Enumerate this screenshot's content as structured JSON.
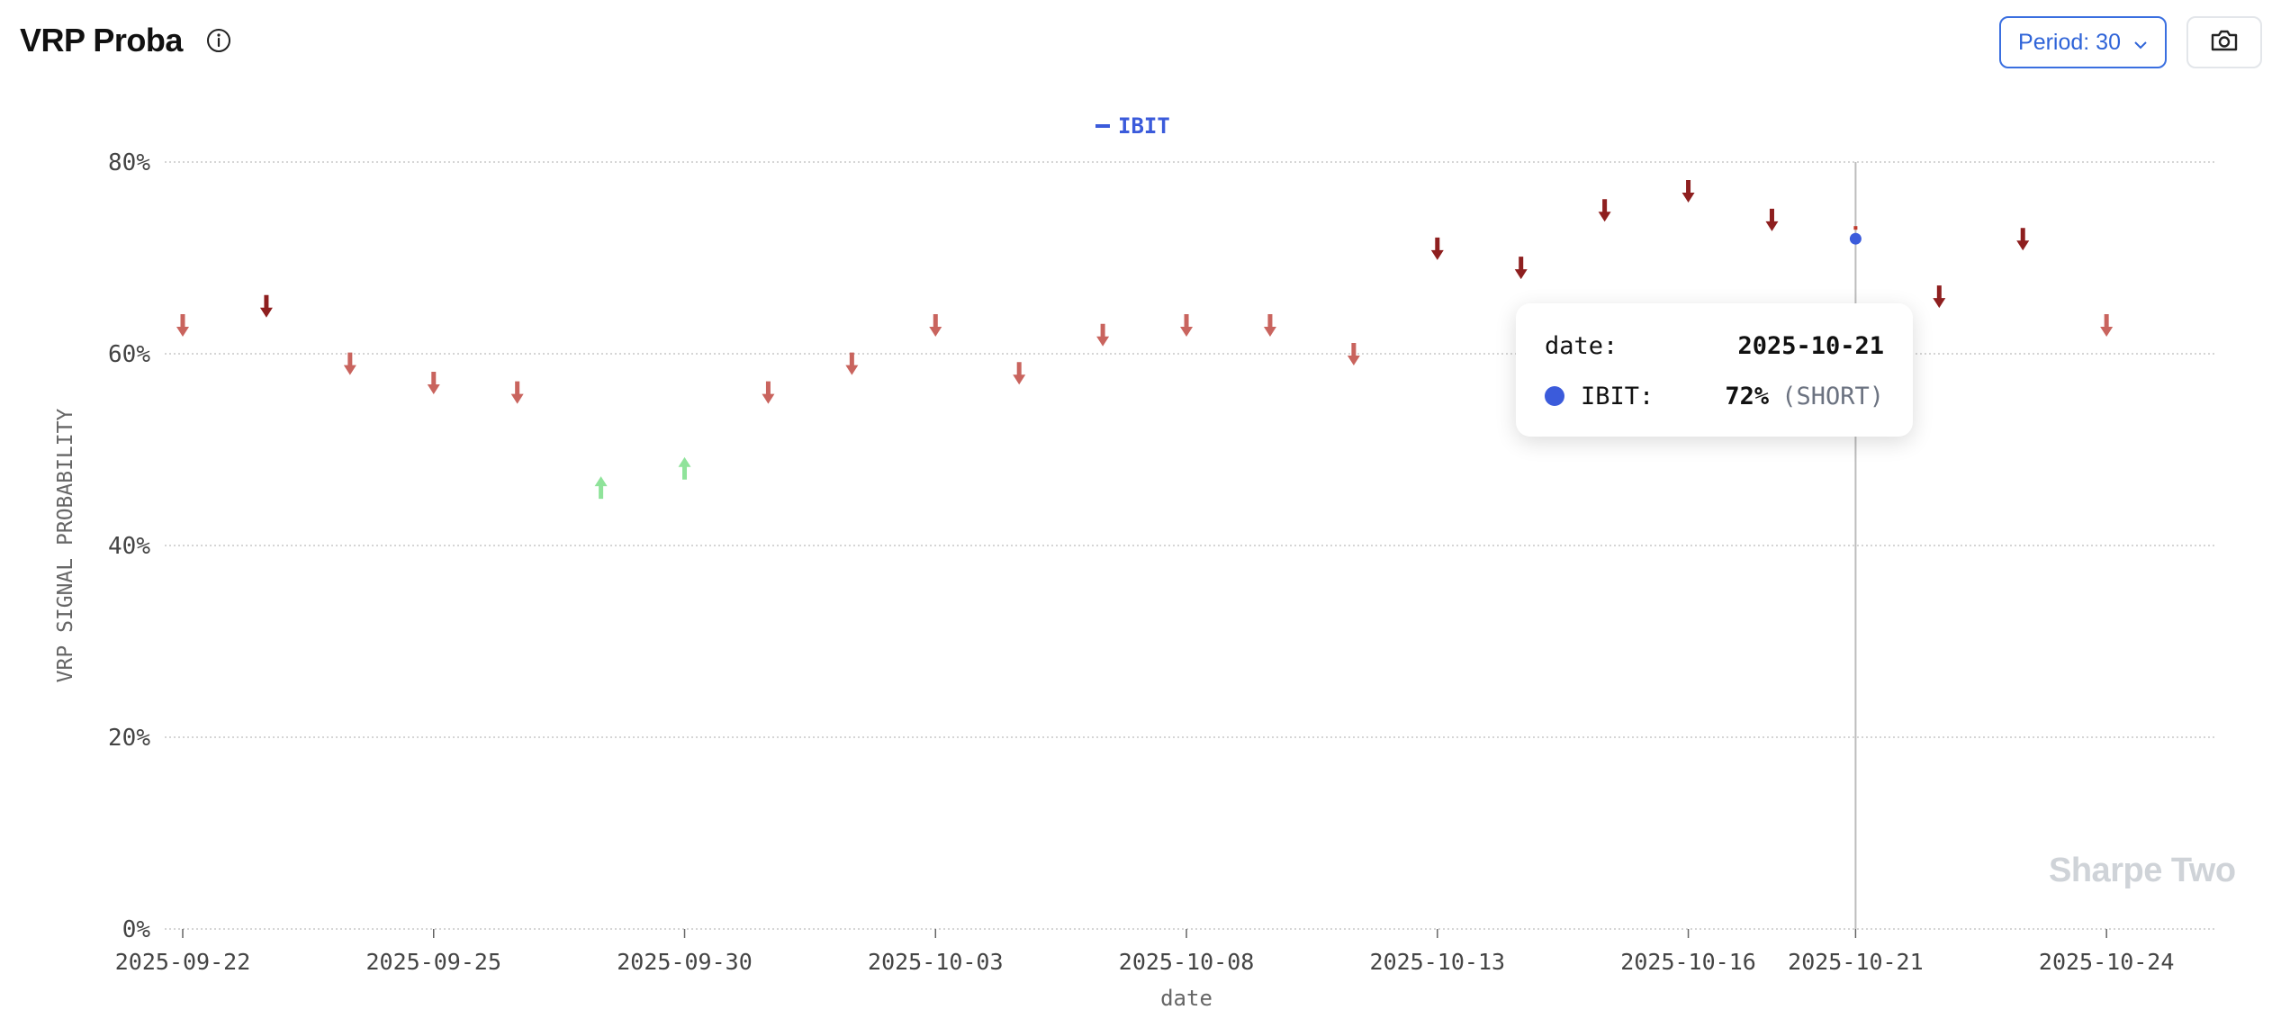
{
  "header": {
    "title": "VRP Proba",
    "period_label": "Period: 30"
  },
  "colors": {
    "short_light": "#c9645e",
    "short_dark": "#8e1f1f",
    "long": "#8fe39a",
    "series": "#3b5bdb",
    "grid": "#c7c7c7",
    "axis_text": "#444444"
  },
  "tooltip": {
    "date_label": "date:",
    "date_value": "2025-10-21",
    "series_label": "IBIT:",
    "value_text": "72%",
    "signal_text": "(SHORT)"
  },
  "watermark": "Sharpe Two",
  "chart_data": {
    "type": "scatter",
    "xlabel": "date",
    "ylabel": "VRP SIGNAL PROBABILITY",
    "ylim": [
      0,
      80
    ],
    "yticks": [
      "0%",
      "20%",
      "40%",
      "60%",
      "80%"
    ],
    "xtick_labels": [
      "2025-09-22",
      "2025-09-25",
      "2025-09-30",
      "2025-10-03",
      "2025-10-08",
      "2025-10-13",
      "2025-10-16",
      "2025-10-21",
      "2025-10-24"
    ],
    "grid": true,
    "legend": {
      "position": "top-center",
      "entries": [
        "IBIT"
      ]
    },
    "highlight_date": "2025-10-21",
    "series": [
      {
        "name": "IBIT",
        "points": [
          {
            "x": "2025-09-22",
            "y": 63,
            "signal": "short"
          },
          {
            "x": "2025-09-23",
            "y": 65,
            "signal": "short"
          },
          {
            "x": "2025-09-24",
            "y": 59,
            "signal": "short"
          },
          {
            "x": "2025-09-25",
            "y": 57,
            "signal": "short"
          },
          {
            "x": "2025-09-26",
            "y": 56,
            "signal": "short"
          },
          {
            "x": "2025-09-29",
            "y": 46,
            "signal": "long"
          },
          {
            "x": "2025-09-30",
            "y": 48,
            "signal": "long"
          },
          {
            "x": "2025-10-01",
            "y": 56,
            "signal": "short"
          },
          {
            "x": "2025-10-02",
            "y": 59,
            "signal": "short"
          },
          {
            "x": "2025-10-03",
            "y": 63,
            "signal": "short"
          },
          {
            "x": "2025-10-06",
            "y": 58,
            "signal": "short"
          },
          {
            "x": "2025-10-07",
            "y": 62,
            "signal": "short"
          },
          {
            "x": "2025-10-08",
            "y": 63,
            "signal": "short"
          },
          {
            "x": "2025-10-09",
            "y": 63,
            "signal": "short"
          },
          {
            "x": "2025-10-10",
            "y": 60,
            "signal": "short"
          },
          {
            "x": "2025-10-13",
            "y": 71,
            "signal": "short"
          },
          {
            "x": "2025-10-14",
            "y": 69,
            "signal": "short"
          },
          {
            "x": "2025-10-15",
            "y": 75,
            "signal": "short"
          },
          {
            "x": "2025-10-16",
            "y": 77,
            "signal": "short"
          },
          {
            "x": "2025-10-17",
            "y": 74,
            "signal": "short"
          },
          {
            "x": "2025-10-21",
            "y": 72,
            "signal": "short"
          },
          {
            "x": "2025-10-22",
            "y": 66,
            "signal": "short"
          },
          {
            "x": "2025-10-23",
            "y": 72,
            "signal": "short"
          },
          {
            "x": "2025-10-24",
            "y": 63,
            "signal": "short"
          }
        ]
      }
    ]
  }
}
